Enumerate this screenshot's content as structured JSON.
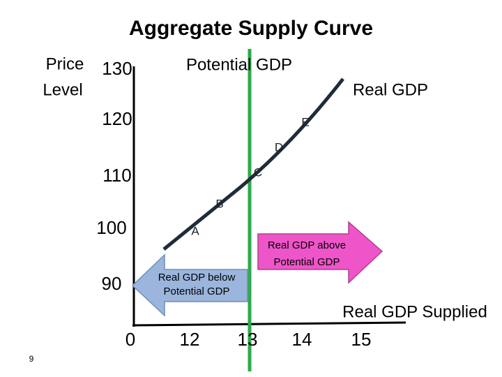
{
  "title": "Aggregate Supply Curve",
  "y_axis": {
    "label": [
      "Price",
      "Level"
    ],
    "ticks": [
      "130",
      "120",
      "110",
      "100",
      "90"
    ]
  },
  "x_axis": {
    "label": "Real GDP Supplied",
    "ticks": [
      "0",
      "12",
      "13",
      "14",
      "15"
    ]
  },
  "curve": {
    "label": "Real GDP",
    "points": [
      "A",
      "B",
      "C",
      "D",
      "E"
    ]
  },
  "potential_gdp": {
    "label": "Potential GDP"
  },
  "callouts": [
    {
      "lines": [
        "Real GDP above",
        "Potential GDP"
      ]
    },
    {
      "lines": [
        "Real GDP below",
        "Potential GDP"
      ]
    }
  ],
  "page_number": "9"
}
